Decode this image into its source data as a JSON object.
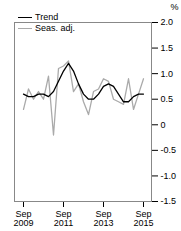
{
  "chart_data": {
    "type": "line",
    "categories": [
      "Sep 2009",
      null,
      null,
      null,
      null,
      null,
      null,
      null,
      "Sep 2011",
      null,
      null,
      null,
      null,
      null,
      null,
      null,
      "Sep 2013",
      null,
      null,
      null,
      null,
      null,
      null,
      null,
      "Sep 2015"
    ],
    "series": [
      {
        "name": "Trend",
        "color": "#000000",
        "values": [
          0.6,
          0.55,
          0.55,
          0.6,
          0.6,
          0.55,
          0.65,
          0.85,
          1.05,
          1.2,
          1.05,
          0.8,
          0.6,
          0.5,
          0.5,
          0.6,
          0.75,
          0.8,
          0.75,
          0.6,
          0.45,
          0.45,
          0.55,
          0.6,
          0.6
        ]
      },
      {
        "name": "Seas. adj.",
        "color": "#aaaaaa",
        "values": [
          0.3,
          0.7,
          0.5,
          0.65,
          0.5,
          0.95,
          -0.2,
          1.1,
          1.15,
          1.25,
          0.65,
          0.8,
          0.45,
          0.2,
          0.65,
          0.7,
          0.9,
          0.85,
          0.5,
          0.45,
          0.4,
          0.9,
          0.3,
          0.6,
          0.9
        ]
      }
    ],
    "y_label": "%",
    "ylim": [
      -1.5,
      2.0
    ],
    "yticks": [
      {
        "value": -1.5,
        "label": "-1.5"
      },
      {
        "value": -1,
        "label": "-1.0"
      },
      {
        "value": -0.5,
        "label": "-0.5"
      },
      0,
      0.5,
      {
        "value": 1,
        "label": "1.0"
      },
      1.5,
      {
        "value": 2,
        "label": "2.0"
      }
    ],
    "legend": "top-left",
    "grid": false
  }
}
